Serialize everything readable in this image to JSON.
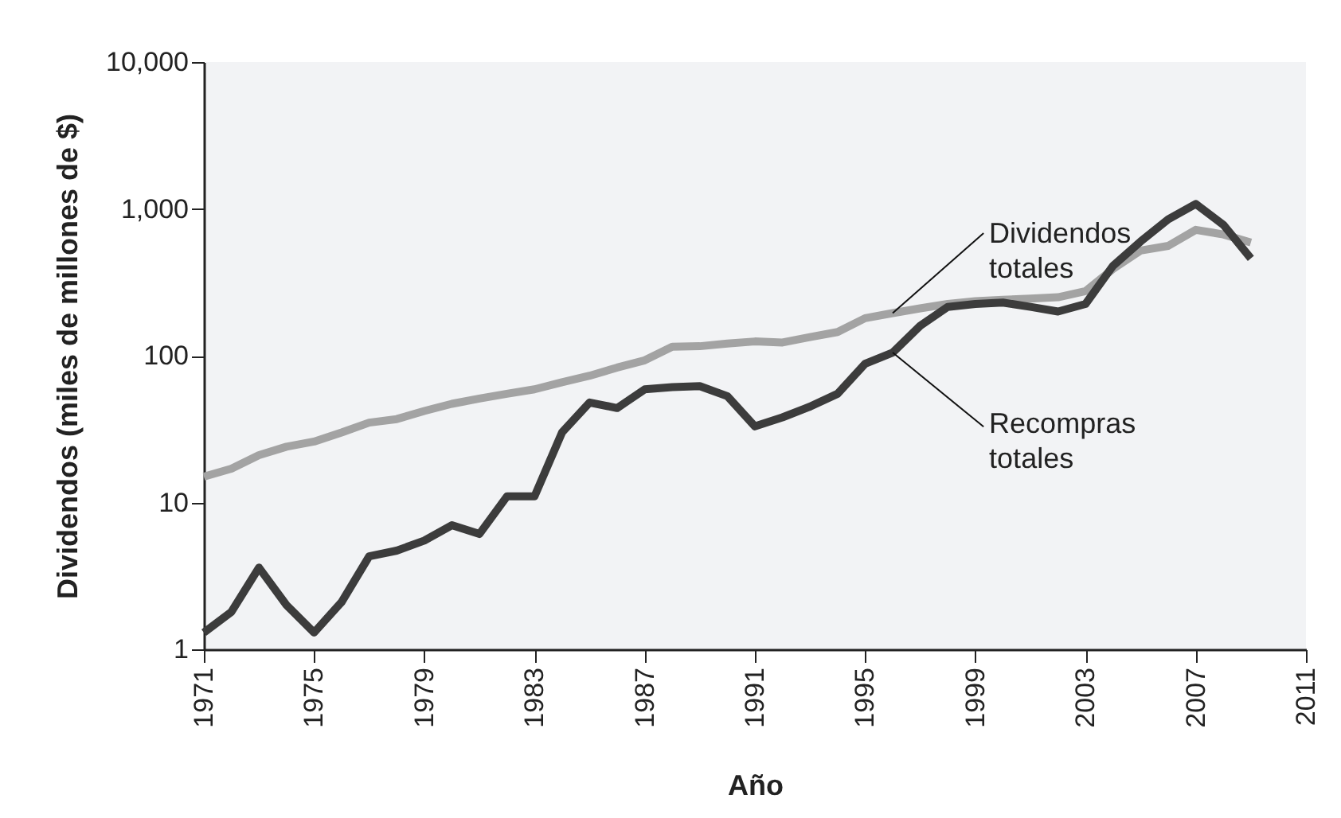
{
  "chart_data": {
    "type": "line",
    "xlabel": "Año",
    "ylabel": "Dividendos (miles de millones de $)",
    "x": [
      1971,
      1972,
      1973,
      1974,
      1975,
      1976,
      1977,
      1978,
      1979,
      1980,
      1981,
      1982,
      1983,
      1984,
      1985,
      1986,
      1987,
      1988,
      1989,
      1990,
      1991,
      1992,
      1993,
      1994,
      1995,
      1996,
      1997,
      1998,
      1999,
      2000,
      2001,
      2002,
      2003,
      2004,
      2005,
      2006,
      2007,
      2008,
      2009
    ],
    "series": [
      {
        "color": "#a3a3a3",
        "values": [
          15,
          17,
          21,
          24,
          26,
          30,
          35,
          37,
          42,
          47,
          51,
          55,
          59,
          66,
          73,
          83,
          93,
          115,
          116,
          121,
          125,
          123,
          134,
          145,
          180,
          195,
          210,
          225,
          235,
          240,
          245,
          250,
          275,
          390,
          520,
          560,
          720,
          670,
          590
        ]
      },
      {
        "color": "#3c3c3c",
        "values": [
          1.3,
          1.8,
          3.6,
          2.0,
          1.3,
          2.1,
          4.3,
          4.7,
          5.5,
          7.0,
          6.1,
          11,
          11,
          30,
          48,
          44,
          59,
          61,
          62,
          53,
          33,
          38,
          45,
          55,
          88,
          105,
          160,
          215,
          225,
          230,
          215,
          200,
          225,
          410,
          600,
          850,
          1080,
          780,
          460
        ]
      }
    ],
    "annotations": [
      {
        "text": "Dividendos\ntotales",
        "x": 1996,
        "y": 195
      },
      {
        "text": "Recompras\ntotales",
        "x": 1996,
        "y": 105
      }
    ],
    "log": true,
    "xlim": [
      1971,
      2011
    ],
    "xticks": [
      1971,
      1975,
      1979,
      1983,
      1987,
      1991,
      1995,
      1999,
      2003,
      2007,
      2011
    ],
    "ylim": [
      1,
      10000
    ],
    "yticks": [
      1,
      10,
      100,
      {
        "value": 1000,
        "label": "1,000"
      },
      {
        "value": 10000,
        "label": "10,000"
      }
    ],
    "line_style": "solid",
    "marker": "none"
  }
}
